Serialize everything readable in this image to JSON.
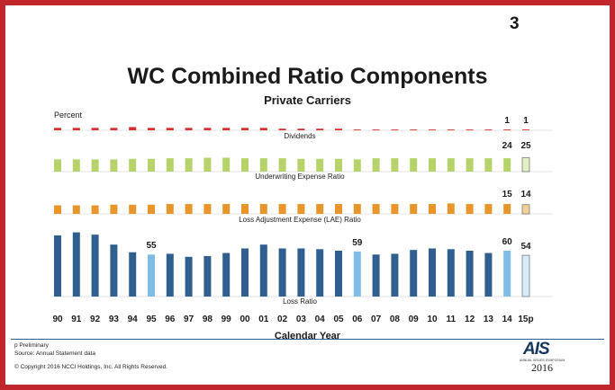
{
  "page_number": "3",
  "chart_data": {
    "type": "bar",
    "title": "WC Combined Ratio Components",
    "subtitle": "Private Carriers",
    "unit_label": "Percent",
    "xlabel": "Calendar Year",
    "categories": [
      "90",
      "91",
      "92",
      "93",
      "94",
      "95",
      "96",
      "97",
      "98",
      "99",
      "00",
      "01",
      "02",
      "03",
      "04",
      "05",
      "06",
      "07",
      "08",
      "09",
      "10",
      "11",
      "12",
      "13",
      "14",
      "15p"
    ],
    "series": [
      {
        "name": "Dividends",
        "color": "#d9312b",
        "values": [
          3,
          3,
          3,
          3,
          4,
          3,
          3,
          3,
          3,
          3,
          3,
          3,
          2,
          2,
          2,
          2,
          1,
          1,
          1,
          1,
          1,
          1,
          1,
          1,
          1,
          1
        ],
        "labels": {
          "14": "1",
          "15p": "1"
        }
      },
      {
        "name": "Underwriting Expense Ratio",
        "color": "#b6d36b",
        "values": [
          22,
          22,
          22,
          22,
          23,
          23,
          24,
          24,
          25,
          25,
          24,
          24,
          24,
          23,
          23,
          23,
          22,
          24,
          24,
          24,
          24,
          24,
          24,
          24,
          24,
          25
        ],
        "labels": {
          "14": "24",
          "15p": "25"
        }
      },
      {
        "name": "Loss Adjustment Expense (LAE) Ratio",
        "color": "#e8962c",
        "values": [
          13,
          13,
          13,
          14,
          14,
          14,
          15,
          15,
          15,
          15,
          15,
          15,
          15,
          15,
          15,
          15,
          15,
          15,
          15,
          15,
          15,
          16,
          15,
          15,
          15,
          14
        ],
        "labels": {
          "14": "15",
          "15p": "14"
        }
      },
      {
        "name": "Loss Ratio",
        "color": "#2e5f8f",
        "values": [
          80,
          84,
          81,
          68,
          58,
          55,
          56,
          52,
          53,
          57,
          63,
          68,
          63,
          63,
          62,
          60,
          59,
          55,
          56,
          61,
          63,
          62,
          60,
          57,
          60,
          54
        ],
        "labels": {
          "95": "55",
          "06": "59",
          "14": "60",
          "15p": "54"
        }
      }
    ],
    "highlight_color": "#7fbde8",
    "highlight_categories": [
      "95",
      "06",
      "14"
    ],
    "preliminary_category": "15p",
    "ylim": [
      0,
      90
    ],
    "grid": false,
    "legend": "none"
  },
  "footnotes": {
    "preliminary": "p Preliminary",
    "source": "Source: Annual Statement data",
    "copyright": "© Copyright 2016 NCCI Holdings, Inc. All Rights Reserved."
  },
  "logo": {
    "name": "AIS",
    "tagline": "ANNUAL ISSUES SYMPOSIUM",
    "year": "2016"
  }
}
